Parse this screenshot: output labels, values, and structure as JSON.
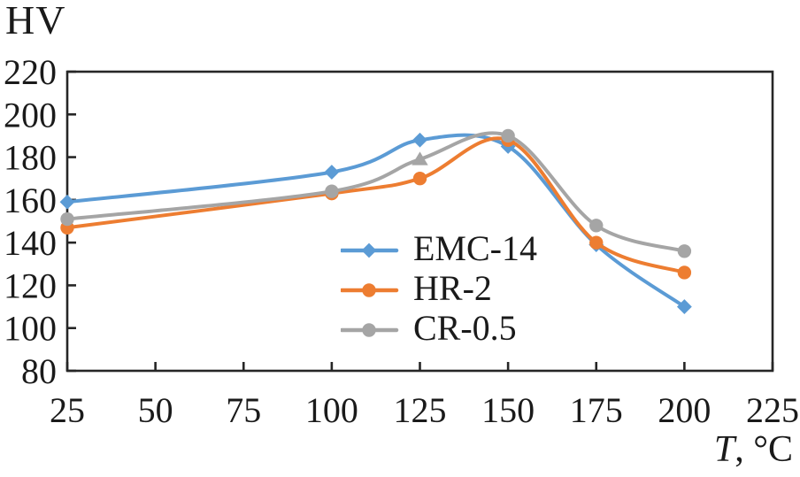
{
  "figure": {
    "y_axis_unit_label": "HV",
    "x_axis_title_italic": "T",
    "x_axis_title_rest": ", °C"
  },
  "chart_data": {
    "type": "line",
    "title": "",
    "xlabel": "T, °C",
    "ylabel": "HV",
    "x_axis_range": [
      25,
      225
    ],
    "y_axis_range": [
      80,
      220
    ],
    "x_ticks": [
      25,
      50,
      75,
      100,
      125,
      150,
      175,
      200,
      225
    ],
    "y_ticks": [
      220,
      200,
      180,
      160,
      140,
      120,
      100,
      80
    ],
    "grid": false,
    "smooth_lines": true,
    "legend_position": "inside-bottom-center",
    "axis_color": "#262626",
    "text_color": "#1a1a1a",
    "x": [
      25,
      100,
      125,
      150,
      175,
      200
    ],
    "series": [
      {
        "name": "EMC-14",
        "color": "#5B9BD5",
        "marker": "diamond",
        "values": [
          159,
          173,
          188,
          185,
          139,
          110
        ]
      },
      {
        "name": "HR-2",
        "color": "#ED7D31",
        "marker": "circle",
        "values": [
          147,
          163,
          170,
          188,
          140,
          126
        ]
      },
      {
        "name": "CR-0.5",
        "color": "#A5A5A5",
        "marker": "circle",
        "marker_overrides": {
          "2": "triangle"
        },
        "values": [
          151,
          164,
          179,
          190,
          148,
          136
        ]
      }
    ]
  }
}
